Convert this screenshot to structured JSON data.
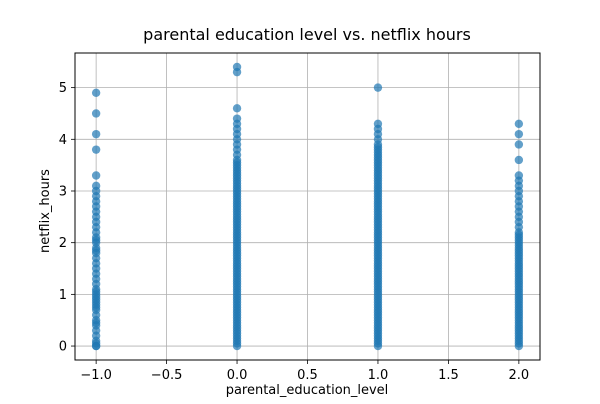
{
  "chart_data": {
    "type": "scatter",
    "title": "parental education level vs. netflix hours",
    "xlabel": "parental_education_level",
    "ylabel": "netflix_hours",
    "xlim": [
      -1.15,
      2.15
    ],
    "ylim": [
      -0.27,
      5.67
    ],
    "xticks": [
      -1.0,
      -0.5,
      0.0,
      0.5,
      1.0,
      1.5,
      2.0
    ],
    "xtick_labels": [
      "−1.0",
      "−0.5",
      "0.0",
      "0.5",
      "1.0",
      "1.5",
      "2.0"
    ],
    "yticks": [
      0,
      1,
      2,
      3,
      4,
      5
    ],
    "ytick_labels": [
      "0",
      "1",
      "2",
      "3",
      "4",
      "5"
    ],
    "grid": true,
    "marker_color": "#1f77b4",
    "marker_alpha": 0.7,
    "series": [
      {
        "x_value": -1,
        "y_values": [
          0.0,
          0.0,
          0.05,
          0.1,
          0.2,
          0.3,
          0.4,
          0.45,
          0.5,
          0.6,
          0.7,
          0.75,
          0.8,
          0.85,
          0.9,
          0.95,
          1.0,
          1.05,
          1.1,
          1.2,
          1.3,
          1.4,
          1.5,
          1.6,
          1.7,
          1.8,
          1.85,
          1.9,
          2.0,
          2.05,
          2.1,
          2.2,
          2.3,
          2.4,
          2.5,
          2.6,
          2.7,
          2.8,
          2.9,
          3.0,
          3.1,
          3.3,
          3.8,
          4.1,
          4.5,
          4.9
        ]
      },
      {
        "x_value": 0,
        "y_values": [
          0.0,
          0.05,
          0.1,
          0.15,
          0.2,
          0.25,
          0.3,
          0.35,
          0.4,
          0.45,
          0.5,
          0.55,
          0.6,
          0.65,
          0.7,
          0.75,
          0.8,
          0.85,
          0.9,
          0.95,
          1.0,
          1.05,
          1.1,
          1.15,
          1.2,
          1.25,
          1.3,
          1.35,
          1.4,
          1.45,
          1.5,
          1.55,
          1.6,
          1.65,
          1.7,
          1.75,
          1.8,
          1.85,
          1.9,
          1.95,
          2.0,
          2.05,
          2.1,
          2.15,
          2.2,
          2.25,
          2.3,
          2.35,
          2.4,
          2.45,
          2.5,
          2.55,
          2.6,
          2.65,
          2.7,
          2.75,
          2.8,
          2.85,
          2.9,
          2.95,
          3.0,
          3.05,
          3.1,
          3.15,
          3.2,
          3.25,
          3.3,
          3.35,
          3.4,
          3.45,
          3.5,
          3.55,
          3.6,
          3.7,
          3.8,
          3.9,
          4.0,
          4.1,
          4.2,
          4.3,
          4.4,
          4.6,
          5.3,
          5.4
        ]
      },
      {
        "x_value": 1,
        "y_values": [
          0.0,
          0.05,
          0.1,
          0.15,
          0.2,
          0.25,
          0.3,
          0.35,
          0.4,
          0.45,
          0.5,
          0.55,
          0.6,
          0.65,
          0.7,
          0.75,
          0.8,
          0.85,
          0.9,
          0.95,
          1.0,
          1.05,
          1.1,
          1.15,
          1.2,
          1.25,
          1.3,
          1.35,
          1.4,
          1.45,
          1.5,
          1.55,
          1.6,
          1.65,
          1.7,
          1.75,
          1.8,
          1.85,
          1.9,
          1.95,
          2.0,
          2.05,
          2.1,
          2.15,
          2.2,
          2.25,
          2.3,
          2.35,
          2.4,
          2.45,
          2.5,
          2.55,
          2.6,
          2.65,
          2.7,
          2.75,
          2.8,
          2.85,
          2.9,
          2.95,
          3.0,
          3.05,
          3.1,
          3.15,
          3.2,
          3.25,
          3.3,
          3.35,
          3.4,
          3.45,
          3.5,
          3.55,
          3.6,
          3.65,
          3.7,
          3.75,
          3.8,
          3.85,
          3.9,
          4.0,
          4.1,
          4.2,
          4.3,
          5.0
        ]
      },
      {
        "x_value": 2,
        "y_values": [
          0.0,
          0.05,
          0.1,
          0.15,
          0.2,
          0.25,
          0.3,
          0.35,
          0.4,
          0.45,
          0.5,
          0.55,
          0.6,
          0.65,
          0.7,
          0.75,
          0.8,
          0.85,
          0.9,
          0.95,
          1.0,
          1.05,
          1.1,
          1.15,
          1.2,
          1.25,
          1.3,
          1.35,
          1.4,
          1.45,
          1.5,
          1.55,
          1.6,
          1.65,
          1.7,
          1.75,
          1.8,
          1.85,
          1.9,
          1.95,
          2.0,
          2.05,
          2.1,
          2.15,
          2.2,
          2.3,
          2.4,
          2.5,
          2.6,
          2.7,
          2.8,
          2.9,
          3.0,
          3.1,
          3.2,
          3.3,
          3.6,
          3.9,
          4.1,
          4.3
        ]
      }
    ]
  }
}
